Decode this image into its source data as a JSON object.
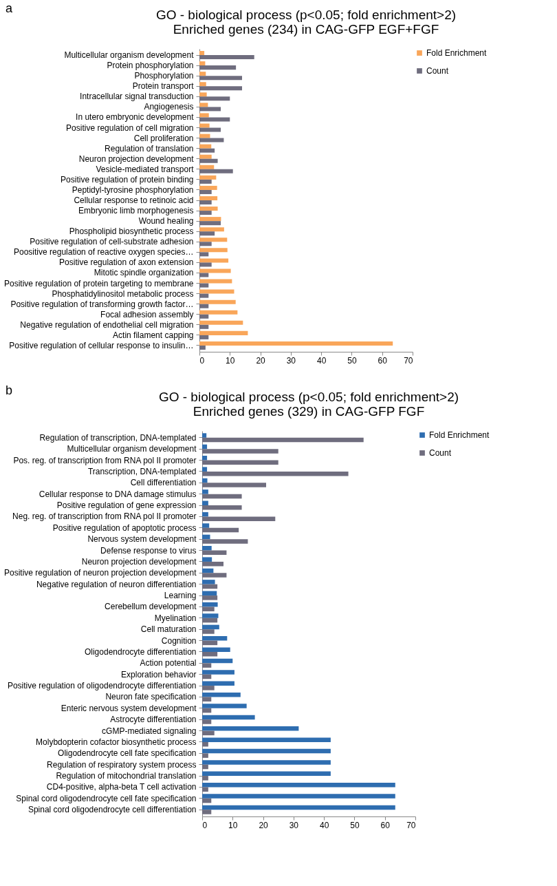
{
  "chart_data": [
    {
      "type": "bar",
      "orientation": "horizontal",
      "title": "GO - biological process (p<0.05; fold enrichment>2)",
      "subtitle": "Enriched genes (234) in CAG-GFP EGF+FGF",
      "annotations": [
        "a"
      ],
      "categories": [
        "Multicellular organism development",
        "Protein phosphorylation",
        "Phosphorylation",
        "Protein transport",
        "Intracellular signal transduction",
        "Angiogenesis",
        "In utero embryonic development",
        "Positive regulation of cell migration",
        "Cell proliferation",
        "Regulation of translation",
        "Neuron projection development",
        "Vesicle-mediated transport",
        "Positive regulation of protein binding",
        "Peptidyl-tyrosine phosphorylation",
        "Cellular response to retinoic acid",
        "Embryonic limb morphogenesis",
        "Wound healing",
        "Phospholipid biosynthetic process",
        "Positive regulation of cell-substrate adhesion",
        "Poositive regulation of reactive oxygen species…",
        "Positive regulation of axon extension",
        "Mitotic spindle organization",
        "Positive regulation of protein targeting to membrane",
        "Phosphatidylinositol metabolic process",
        "Positive regulation of transforming growth factor…",
        "Focal adhesion assembly",
        "Negative regulation of endothelial cell migration",
        "Actin filament capping",
        "Positive regulation of cellular response to insulin…"
      ],
      "series": [
        {
          "name": "Fold Enrichment",
          "color": "#f9a65a",
          "values": [
            1.6,
            1.9,
            2.1,
            2.2,
            2.4,
            2.8,
            3.1,
            3.3,
            3.5,
            3.9,
            4.0,
            4.8,
            5.5,
            5.8,
            5.9,
            6.0,
            7.1,
            8.1,
            9.1,
            9.2,
            9.5,
            10.3,
            10.7,
            11.4,
            11.9,
            12.5,
            14.3,
            15.9,
            63.5
          ]
        },
        {
          "name": "Count",
          "color": "#6f6d7e",
          "values": [
            18,
            12,
            14,
            14,
            10,
            7,
            10,
            7,
            8,
            5,
            6,
            11,
            4,
            4,
            4,
            4,
            7,
            5,
            4,
            3,
            4,
            3,
            3,
            3,
            3,
            3,
            3,
            3,
            2
          ]
        }
      ],
      "xlim": [
        0,
        70
      ],
      "xticks": [
        0,
        10,
        20,
        30,
        40,
        50,
        60,
        70
      ],
      "grid": false,
      "legend": "right"
    },
    {
      "type": "bar",
      "orientation": "horizontal",
      "title": "GO - biological process (p<0.05; fold enrichment>2)",
      "subtitle": "Enriched genes (329) in CAG-GFP FGF",
      "annotations": [
        "b"
      ],
      "categories": [
        "Regulation of transcription, DNA-templated",
        "Multicellular organism development",
        "Pos. reg. of transcription from RNA pol II promoter",
        "Transcription, DNA-templated",
        "Cell differentiation",
        "Cellular response to DNA damage stimulus",
        "Positive regulation of gene expression",
        "Neg. reg. of transcription from RNA pol II promoter",
        "Positive regulation of apoptotic process",
        "Nervous system development",
        "Defense response to virus",
        "Neuron projection development",
        "Positive regulation of neuron projection development",
        "Negative regulation of neuron differentiation",
        "Learning",
        "Cerebellum development",
        "Myelination",
        "Cell maturation",
        "Cognition",
        "Oligodendrocyte differentiation",
        "Action potential",
        "Exploration behavior",
        "Positive regulation of oligodendrocyte differentiation",
        "Neuron fate specification",
        "Enteric nervous system development",
        "Astrocyte differentiation",
        "cGMP-mediated signaling",
        "Molybdopterin cofactor biosynthetic process",
        "Oligodendrocyte cell fate specification",
        "Regulation of respiratory system process",
        "Regulation of mitochondrial translation",
        "CD4-positive, alpha-beta T cell activation",
        "Spinal cord oligodendrocyte cell fate specification",
        "Spinal cord oligodendrocyte cell differentiation"
      ],
      "series": [
        {
          "name": "Fold Enrichment",
          "color": "#2e6db0",
          "values": [
            1.4,
            1.6,
            1.6,
            1.6,
            1.7,
            2.0,
            2.0,
            2.0,
            2.3,
            2.6,
            3.1,
            3.2,
            3.7,
            4.2,
            4.8,
            5.1,
            5.3,
            5.6,
            8.2,
            9.2,
            10.0,
            10.6,
            10.6,
            12.6,
            14.6,
            17.3,
            31.7,
            42.2,
            42.2,
            42.2,
            42.2,
            63.4,
            63.4,
            63.4
          ]
        },
        {
          "name": "Count",
          "color": "#6f6d7e",
          "values": [
            53,
            25,
            25,
            48,
            21,
            13,
            13,
            24,
            12,
            15,
            8,
            7,
            8,
            5,
            5,
            4,
            5,
            4,
            5,
            5,
            3,
            3,
            4,
            3,
            3,
            3,
            4,
            2,
            2,
            2,
            2,
            2,
            3,
            3
          ]
        }
      ],
      "xlim": [
        0,
        70
      ],
      "xticks": [
        0,
        10,
        20,
        30,
        40,
        50,
        60,
        70
      ],
      "grid": false,
      "legend": "right"
    }
  ]
}
